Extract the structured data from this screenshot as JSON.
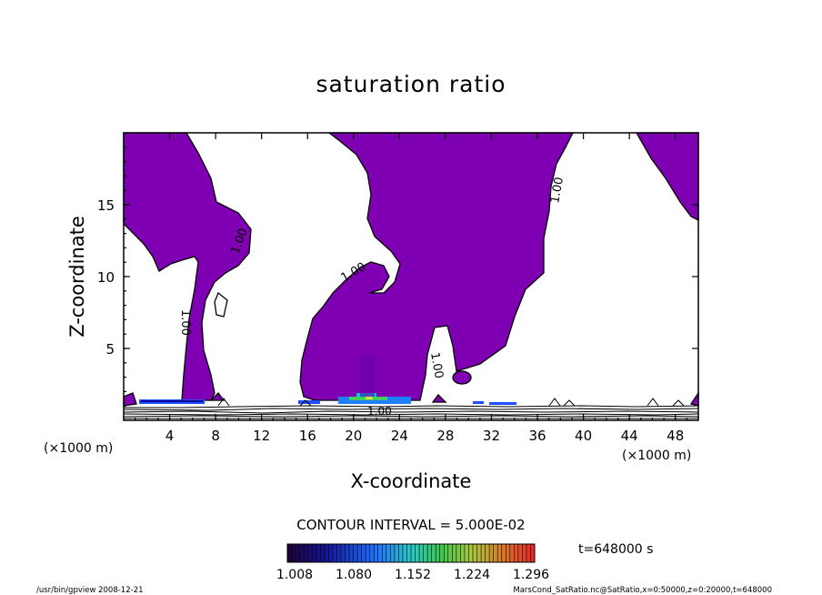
{
  "chart_data": {
    "type": "contour",
    "title": "saturation ratio",
    "xlabel": "X-coordinate",
    "ylabel": "Z-coordinate",
    "x_unit": "(×1000 m)",
    "x_ticks": [
      4,
      8,
      12,
      16,
      20,
      24,
      28,
      32,
      36,
      40,
      44,
      48
    ],
    "y_ticks": [
      5,
      10,
      15
    ],
    "xlim": [
      0,
      50
    ],
    "ylim": [
      0,
      20
    ],
    "contour_labels": [
      "1.00",
      "1.00",
      "1.00",
      "1.00",
      "1.00",
      "1.00"
    ],
    "contour_interval": "CONTOUR INTERVAL = 5.000E-02",
    "colorbar_ticks": [
      "1.008",
      "1.080",
      "1.152",
      "1.224",
      "1.296"
    ],
    "time_label": "t=648000 s",
    "footer_left": "/usr/bin/gpview   2008-12-21",
    "footer_right": "MarsCond_SatRatio.nc@SatRatio,x=0:50000,z=0:20000,t=648000",
    "fill_color": "#7f00b2"
  }
}
